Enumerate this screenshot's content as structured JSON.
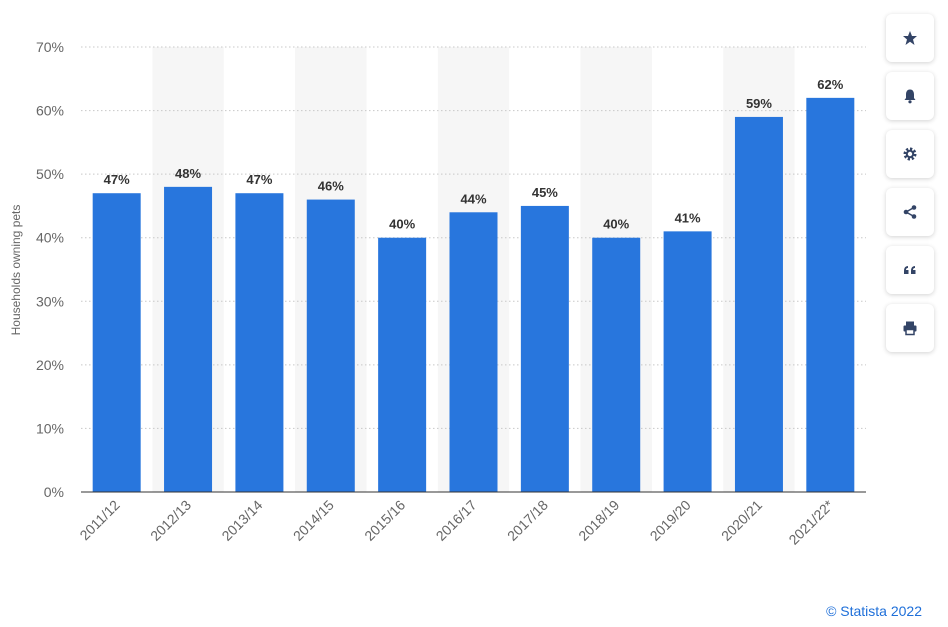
{
  "chart_data": {
    "type": "bar",
    "categories": [
      "2011/12",
      "2012/13",
      "2013/14",
      "2014/15",
      "2015/16",
      "2016/17",
      "2017/18",
      "2018/19",
      "2019/20",
      "2020/21",
      "2021/22*"
    ],
    "values": [
      47,
      48,
      47,
      46,
      40,
      44,
      45,
      40,
      41,
      59,
      62
    ],
    "data_labels": [
      "47%",
      "48%",
      "47%",
      "46%",
      "40%",
      "44%",
      "45%",
      "40%",
      "41%",
      "59%",
      "62%"
    ],
    "ylabel": "Households owning pets",
    "ylim": [
      0,
      70
    ],
    "yticks": [
      "0%",
      "10%",
      "20%",
      "30%",
      "40%",
      "50%",
      "60%",
      "70%"
    ],
    "bar_color": "#2876dd",
    "band_color": "#f6f6f6",
    "grid": true
  },
  "toolbar": {
    "items": [
      "star-icon",
      "bell-icon",
      "gear-icon",
      "share-icon",
      "quote-icon",
      "print-icon"
    ]
  },
  "credit": "© Statista 2022"
}
